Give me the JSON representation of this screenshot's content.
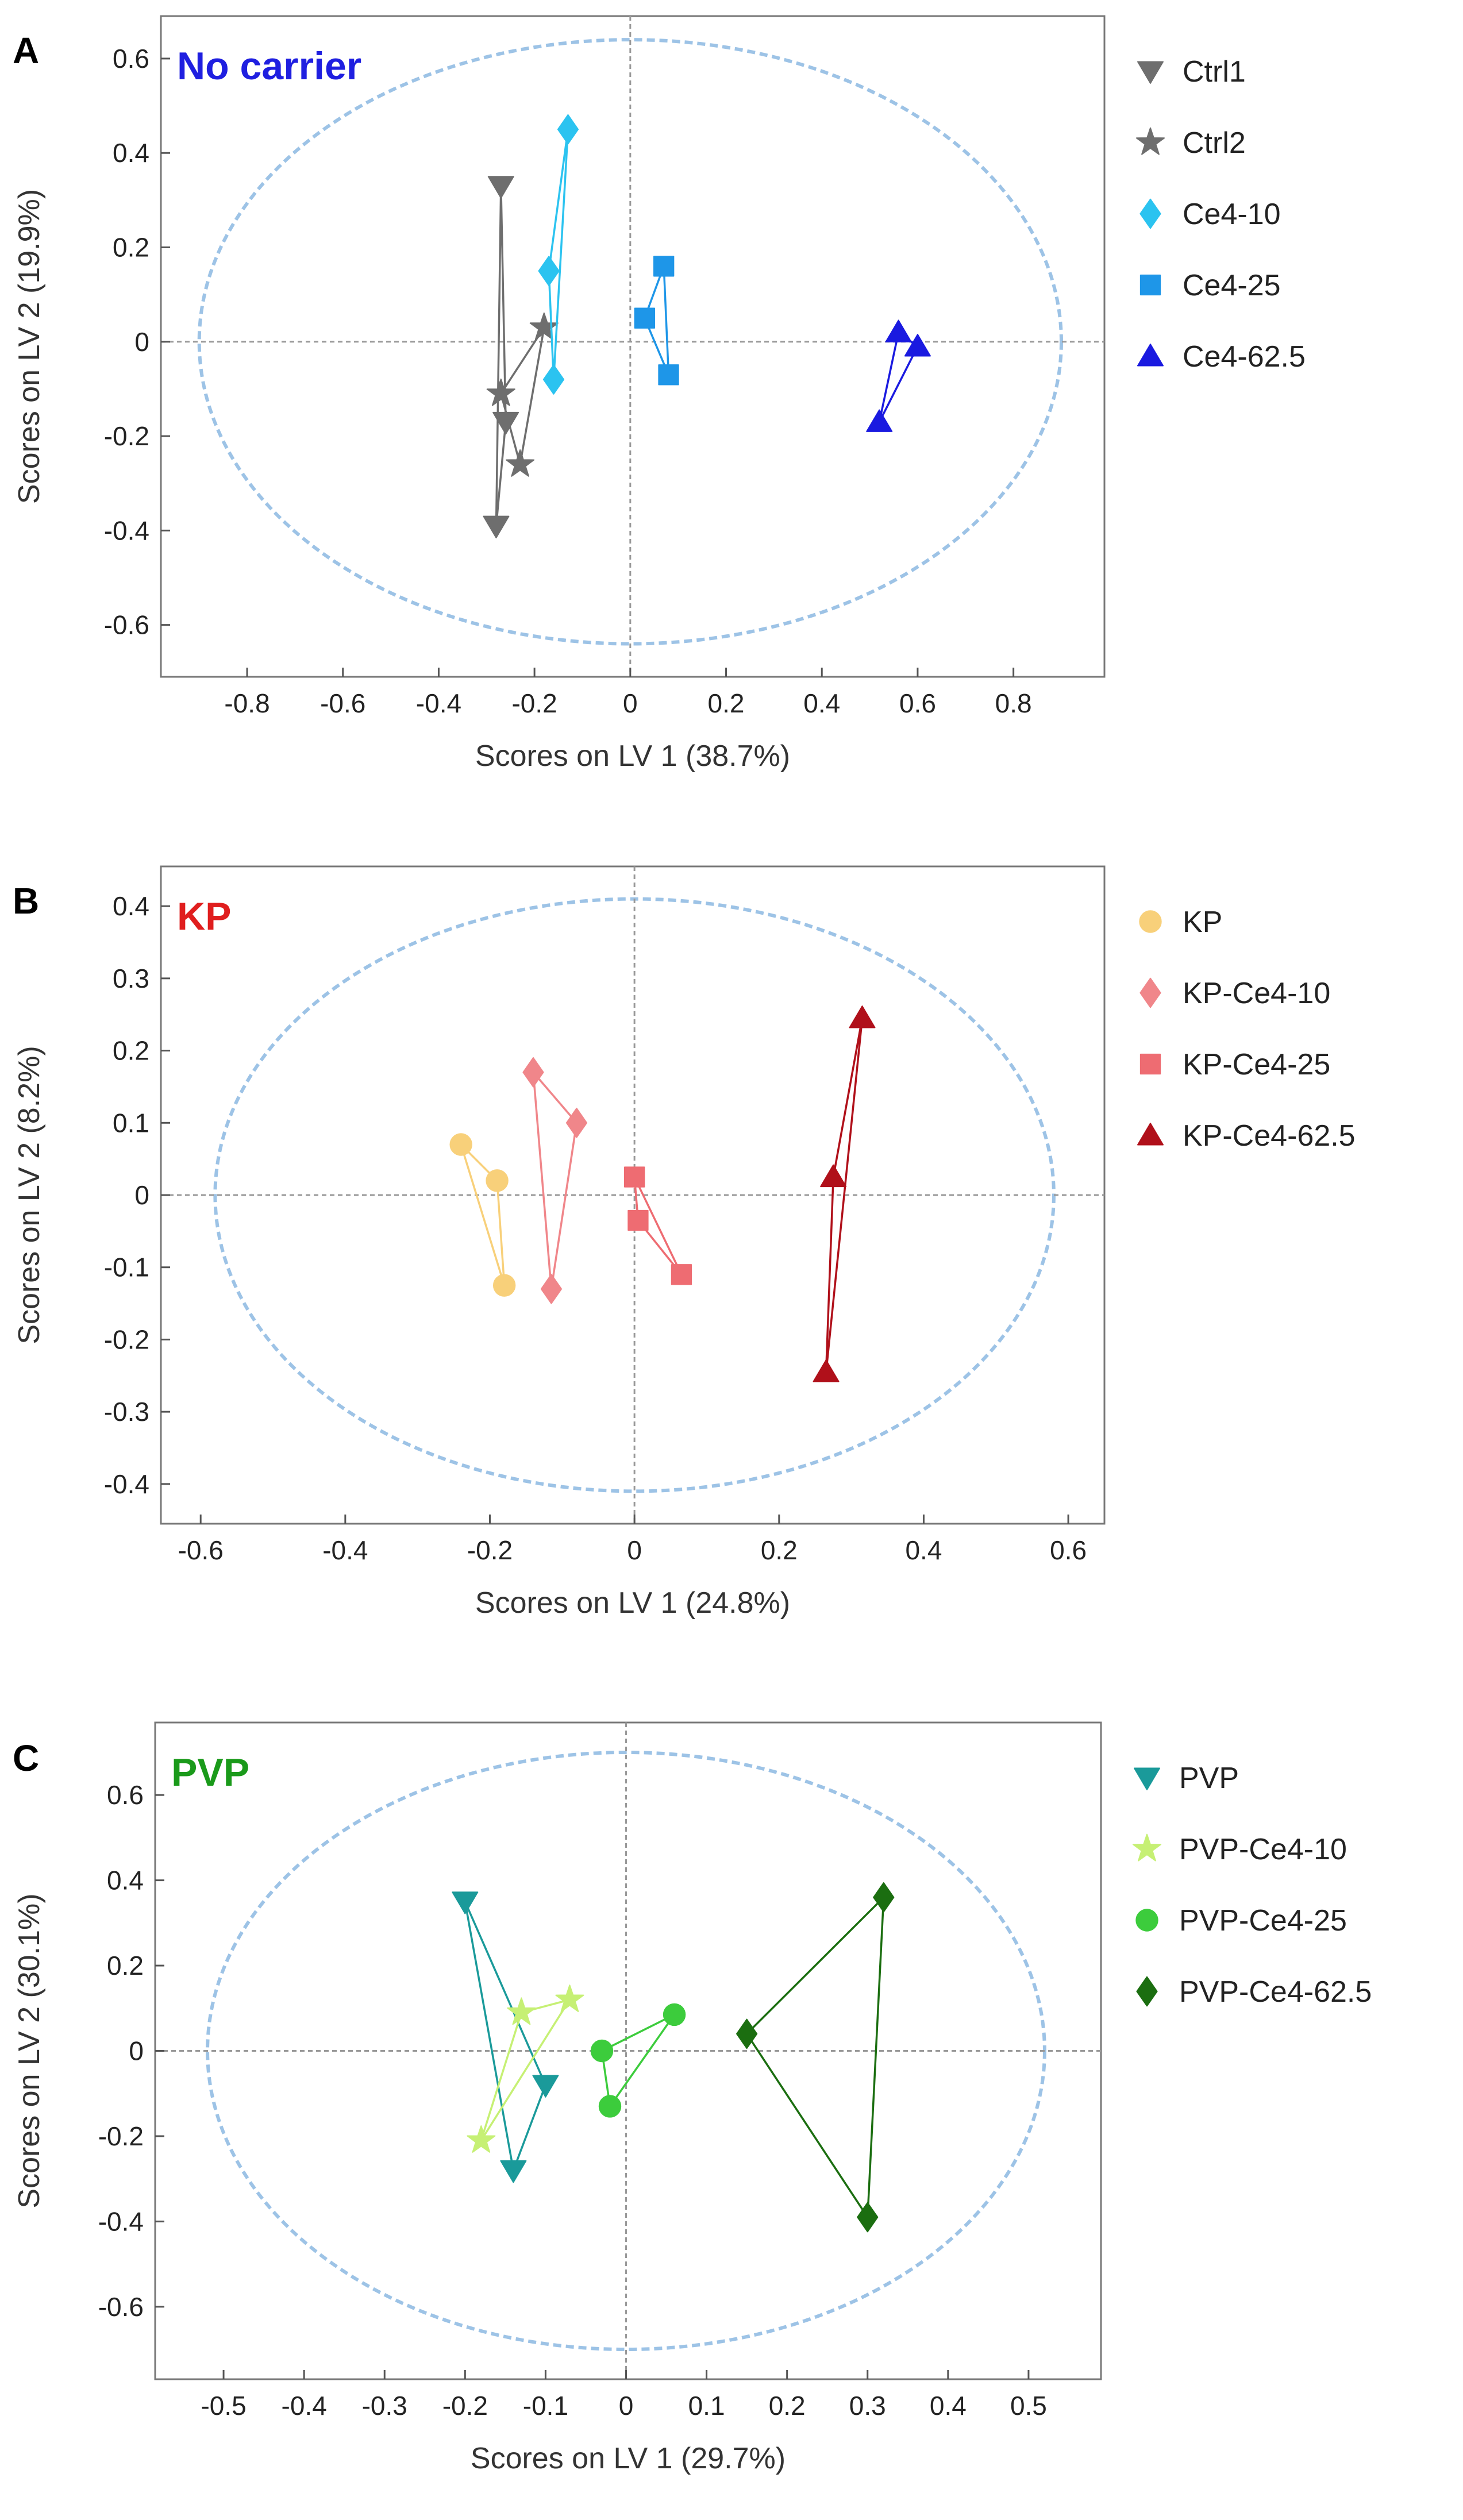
{
  "chart_data": [
    {
      "type": "scatter",
      "panel_label": "A",
      "title": "No carrier",
      "title_color": "#1f1fe0",
      "xlabel": "Scores on LV 1 (38.7%)",
      "ylabel": "Scores on LV 2 (19.9%)",
      "xlim": [
        -0.98,
        0.99
      ],
      "ylim": [
        -0.71,
        0.69
      ],
      "xticks": [
        -0.8,
        -0.6,
        -0.4,
        -0.2,
        0,
        0.2,
        0.4,
        0.6,
        0.8
      ],
      "xtick_labels": [
        "-0.8",
        "-0.6",
        "-0.4",
        "-0.2",
        "0",
        "0.2",
        "0.4",
        "0.6",
        "0.8"
      ],
      "yticks": [
        -0.6,
        -0.4,
        -0.2,
        0,
        0.2,
        0.4,
        0.6
      ],
      "ytick_labels": [
        "-0.6",
        "-0.4",
        "-0.2",
        "0",
        "0.2",
        "0.4",
        "0.6"
      ],
      "ellipse": {
        "rx": 0.9,
        "ry": 0.64
      },
      "legend_position": "right",
      "series": [
        {
          "name": "Ctrl1",
          "marker": "triangle-down",
          "color": "#6e6e6e",
          "x": [
            -0.27,
            -0.28,
            -0.26
          ],
          "y": [
            0.33,
            -0.39,
            -0.17
          ]
        },
        {
          "name": "Ctrl2",
          "marker": "star",
          "color": "#6e6e6e",
          "x": [
            -0.18,
            -0.27,
            -0.23
          ],
          "y": [
            0.03,
            -0.11,
            -0.26
          ]
        },
        {
          "name": "Ce4-10",
          "marker": "diamond",
          "color": "#2bc3f0",
          "x": [
            -0.13,
            -0.17,
            -0.16
          ],
          "y": [
            0.45,
            0.15,
            -0.08
          ]
        },
        {
          "name": "Ce4-25",
          "marker": "square",
          "color": "#1e96e8",
          "x": [
            0.07,
            0.03,
            0.08
          ],
          "y": [
            0.16,
            0.05,
            -0.07
          ]
        },
        {
          "name": "Ce4-62.5",
          "marker": "triangle-up",
          "color": "#1a1ae0",
          "x": [
            0.56,
            0.6,
            0.52
          ],
          "y": [
            0.02,
            -0.01,
            -0.17
          ]
        }
      ]
    },
    {
      "type": "scatter",
      "panel_label": "B",
      "title": "KP",
      "title_color": "#e01e1e",
      "xlabel": "Scores on LV 1 (24.8%)",
      "ylabel": "Scores on LV 2 (8.2%)",
      "xlim": [
        -0.655,
        0.65
      ],
      "ylim": [
        -0.455,
        0.455
      ],
      "xticks": [
        -0.6,
        -0.4,
        -0.2,
        0,
        0.2,
        0.4,
        0.6
      ],
      "xtick_labels": [
        "-0.6",
        "-0.4",
        "-0.2",
        "0",
        "0.2",
        "0.4",
        "0.6"
      ],
      "yticks": [
        -0.4,
        -0.3,
        -0.2,
        -0.1,
        0,
        0.1,
        0.2,
        0.3,
        0.4
      ],
      "ytick_labels": [
        "-0.4",
        "-0.3",
        "-0.2",
        "-0.1",
        "0",
        "0.1",
        "0.2",
        "0.3",
        "0.4"
      ],
      "ellipse": {
        "rx": 0.58,
        "ry": 0.41
      },
      "legend_position": "right",
      "series": [
        {
          "name": "KP",
          "marker": "circle",
          "color": "#f8d07a",
          "x": [
            -0.24,
            -0.19,
            -0.18
          ],
          "y": [
            0.07,
            0.02,
            -0.125
          ]
        },
        {
          "name": "KP-Ce4-10",
          "marker": "diamond",
          "color": "#f0868a",
          "x": [
            -0.14,
            -0.08,
            -0.115
          ],
          "y": [
            0.17,
            0.1,
            -0.13
          ]
        },
        {
          "name": "KP-Ce4-25",
          "marker": "square",
          "color": "#ee6c72",
          "x": [
            0.0,
            0.065,
            0.005
          ],
          "y": [
            0.025,
            -0.11,
            -0.035
          ]
        },
        {
          "name": "KP-Ce4-62.5",
          "marker": "triangle-up",
          "color": "#b0101a",
          "x": [
            0.315,
            0.275,
            0.265
          ],
          "y": [
            0.245,
            0.025,
            -0.245
          ]
        }
      ]
    },
    {
      "type": "scatter",
      "panel_label": "C",
      "title": "PVP",
      "title_color": "#1a9a1a",
      "xlabel": "Scores on LV 1 (29.7%)",
      "ylabel": "Scores on LV 2 (30.1%)",
      "xlim": [
        -0.585,
        0.59
      ],
      "ylim": [
        -0.77,
        0.77
      ],
      "xticks": [
        -0.5,
        -0.4,
        -0.3,
        -0.2,
        -0.1,
        0,
        0.1,
        0.2,
        0.3,
        0.4,
        0.5
      ],
      "xtick_labels": [
        "-0.5",
        "-0.4",
        "-0.3",
        "-0.2",
        "-0.1",
        "0",
        "0.1",
        "0.2",
        "0.3",
        "0.4",
        "0.5"
      ],
      "yticks": [
        -0.6,
        -0.4,
        -0.2,
        0,
        0.2,
        0.4,
        0.6
      ],
      "ytick_labels": [
        "-0.6",
        "-0.4",
        "-0.2",
        "0",
        "0.2",
        "0.4",
        "0.6"
      ],
      "ellipse": {
        "rx": 0.52,
        "ry": 0.7
      },
      "legend_position": "right",
      "series": [
        {
          "name": "PVP",
          "marker": "triangle-down",
          "color": "#1a9a9a",
          "x": [
            -0.2,
            -0.1,
            -0.14
          ],
          "y": [
            0.35,
            -0.08,
            -0.28
          ]
        },
        {
          "name": "PVP-Ce4-10",
          "marker": "star",
          "color": "#c6f074",
          "x": [
            -0.07,
            -0.13,
            -0.18
          ],
          "y": [
            0.12,
            0.09,
            -0.21
          ]
        },
        {
          "name": "PVP-Ce4-25",
          "marker": "circle",
          "color": "#3ccc3c",
          "x": [
            -0.03,
            0.06,
            -0.02
          ],
          "y": [
            0.0,
            0.085,
            -0.13
          ]
        },
        {
          "name": "PVP-Ce4-62.5",
          "marker": "diamond",
          "color": "#1b6e10",
          "x": [
            0.15,
            0.32,
            0.3
          ],
          "y": [
            0.04,
            0.36,
            -0.39
          ]
        }
      ]
    }
  ]
}
